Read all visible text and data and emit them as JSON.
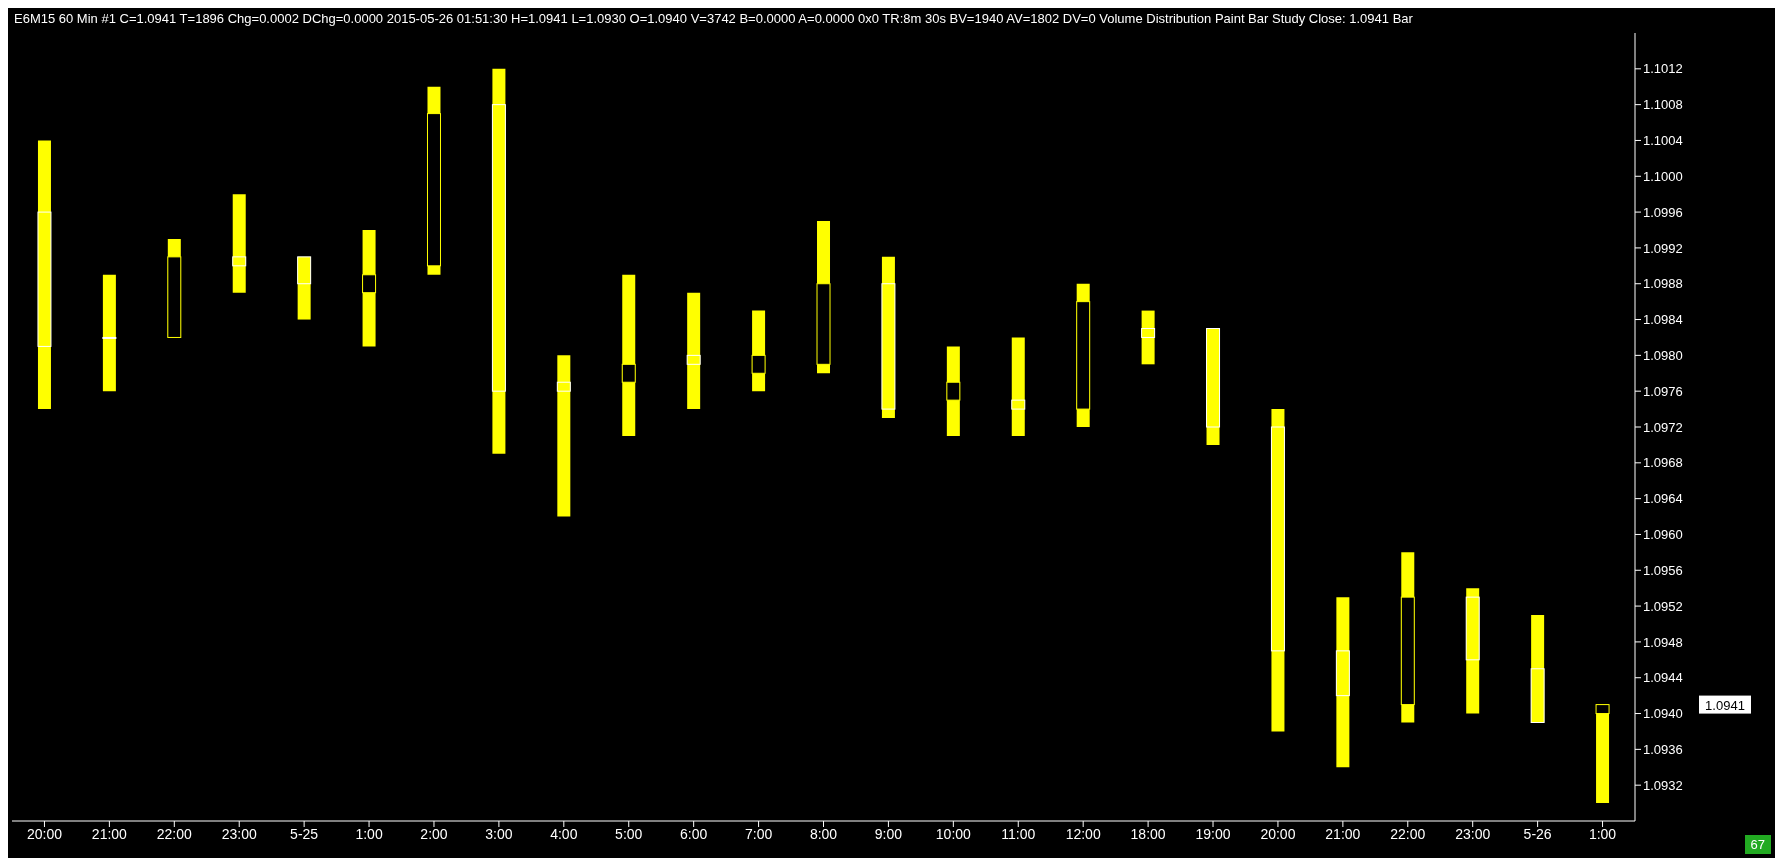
{
  "chart_data": {
    "type": "candlestick",
    "title": "E6M15  60 Min  #1 C=1.0941 T=1896 Chg=0.0002 DChg=0.0000 2015-05-26 01:51:30 H=1.0941 L=1.0930 O=1.0940 V=3742 B=0.0000 A=0.0000 0x0 TR:8m 30s BV=1940 AV=1802 DV=0  Volume Distribution Paint Bar Study  Close: 1.0941  Bar",
    "categories": [
      "20:00",
      "21:00",
      "22:00",
      "23:00",
      "5-25",
      "1:00",
      "2:00",
      "3:00",
      "4:00",
      "5:00",
      "6:00",
      "7:00",
      "8:00",
      "9:00",
      "10:00",
      "11:00",
      "12:00",
      "18:00",
      "19:00",
      "20:00",
      "21:00",
      "22:00",
      "23:00",
      "5-26",
      "1:00"
    ],
    "ohlc": [
      [
        1.0996,
        1.1004,
        1.0974,
        1.0981
      ],
      [
        1.0982,
        1.0989,
        1.0976,
        1.0982
      ],
      [
        1.0982,
        1.0993,
        1.0982,
        1.0991
      ],
      [
        1.0991,
        1.0998,
        1.0987,
        1.099
      ],
      [
        1.0991,
        1.0991,
        1.0984,
        1.0988
      ],
      [
        1.0987,
        1.0994,
        1.0981,
        1.0989
      ],
      [
        1.099,
        1.101,
        1.0989,
        1.1007
      ],
      [
        1.1008,
        1.1012,
        1.0969,
        1.0976
      ],
      [
        1.0977,
        1.098,
        1.0962,
        1.0976
      ],
      [
        1.0977,
        1.0989,
        1.0971,
        1.0979
      ],
      [
        1.098,
        1.0987,
        1.0974,
        1.0979
      ],
      [
        1.0978,
        1.0985,
        1.0976,
        1.098
      ],
      [
        1.0979,
        1.0995,
        1.0978,
        1.0988
      ],
      [
        1.0988,
        1.0991,
        1.0973,
        1.0974
      ],
      [
        1.0975,
        1.0981,
        1.0971,
        1.0977
      ],
      [
        1.0975,
        1.0982,
        1.0971,
        1.0974
      ],
      [
        1.0974,
        1.0988,
        1.0972,
        1.0986
      ],
      [
        1.0983,
        1.0985,
        1.0979,
        1.0982
      ],
      [
        1.0983,
        1.0983,
        1.097,
        1.0972
      ],
      [
        1.0972,
        1.0974,
        1.0938,
        1.0947
      ],
      [
        1.0947,
        1.0953,
        1.0934,
        1.0942
      ],
      [
        1.0941,
        1.0958,
        1.0939,
        1.0953
      ],
      [
        1.0953,
        1.0954,
        1.094,
        1.0946
      ],
      [
        1.0945,
        1.0951,
        1.0939,
        1.0939
      ],
      [
        1.094,
        1.0941,
        1.093,
        1.0941
      ]
    ],
    "color": "#ffff00",
    "ylim": [
      1.0928,
      1.1016
    ],
    "yticks": [
      1.0932,
      1.0936,
      {
        "value": 1.094,
        "label": "1.0940"
      },
      1.0944,
      1.0948,
      1.0952,
      1.0956,
      {
        "value": 1.096,
        "label": "1.0960"
      },
      1.0964,
      1.0968,
      1.0972,
      1.0976,
      {
        "value": 1.098,
        "label": "1.0980"
      },
      1.0984,
      1.0988,
      1.0992,
      1.0996,
      {
        "value": 1.1,
        "label": "1.1000"
      },
      1.1004,
      1.1008,
      1.1012
    ],
    "annotations": [
      "1.0941",
      "67"
    ]
  }
}
